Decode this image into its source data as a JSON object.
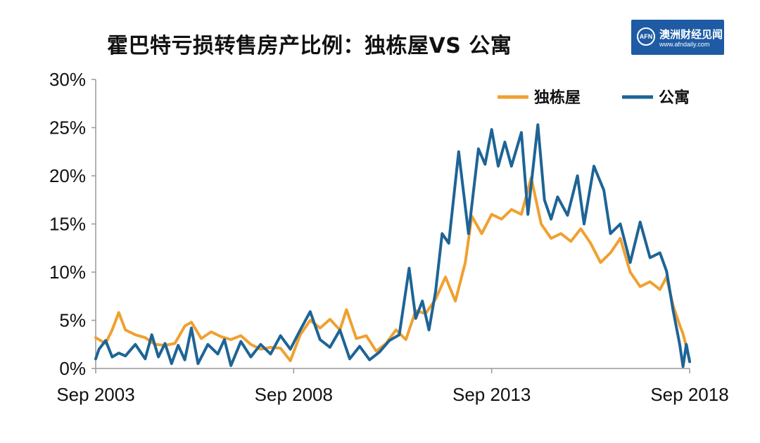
{
  "title": "霍巴特亏损转售房产比例：独栋屋VS 公寓",
  "logo": {
    "badge_text": "AFN",
    "name": "澳洲财经见闻",
    "url": "www.afndaily.com"
  },
  "chart_data": {
    "type": "line",
    "title": "霍巴特亏损转售房产比例：独栋屋VS 公寓",
    "xlabel": "",
    "ylabel": "",
    "x_range": [
      "2003-09",
      "2018-09"
    ],
    "ylim": [
      0,
      30
    ],
    "y_ticks": [
      "0%",
      "5%",
      "10%",
      "15%",
      "20%",
      "25%",
      "30%"
    ],
    "x_ticks": [
      "Sep 2003",
      "Sep 2008",
      "Sep 2013",
      "Sep 2018"
    ],
    "grid": false,
    "legend_position": "top-right",
    "series": [
      {
        "name": "独栋屋",
        "color": "#f0a030",
        "points": [
          [
            "2003-09",
            3.2
          ],
          [
            "2003-12",
            2.6
          ],
          [
            "2004-02",
            4.0
          ],
          [
            "2004-04",
            5.8
          ],
          [
            "2004-06",
            4.0
          ],
          [
            "2004-09",
            3.5
          ],
          [
            "2004-12",
            3.2
          ],
          [
            "2005-03",
            2.5
          ],
          [
            "2005-06",
            2.4
          ],
          [
            "2005-09",
            2.6
          ],
          [
            "2005-12",
            4.4
          ],
          [
            "2006-02",
            4.8
          ],
          [
            "2006-05",
            3.1
          ],
          [
            "2006-08",
            3.8
          ],
          [
            "2006-11",
            3.3
          ],
          [
            "2007-02",
            3.0
          ],
          [
            "2007-05",
            3.4
          ],
          [
            "2007-08",
            2.5
          ],
          [
            "2007-11",
            2.0
          ],
          [
            "2008-02",
            2.2
          ],
          [
            "2008-05",
            2.1
          ],
          [
            "2008-08",
            0.8
          ],
          [
            "2008-11",
            3.5
          ],
          [
            "2009-02",
            5.0
          ],
          [
            "2009-05",
            4.2
          ],
          [
            "2009-08",
            5.1
          ],
          [
            "2009-11",
            4.0
          ],
          [
            "2010-01",
            6.1
          ],
          [
            "2010-04",
            3.1
          ],
          [
            "2010-07",
            3.4
          ],
          [
            "2010-10",
            1.8
          ],
          [
            "2011-01",
            2.6
          ],
          [
            "2011-04",
            4.0
          ],
          [
            "2011-07",
            3.0
          ],
          [
            "2011-10",
            6.0
          ],
          [
            "2012-01",
            5.7
          ],
          [
            "2012-04",
            7.2
          ],
          [
            "2012-07",
            9.5
          ],
          [
            "2012-10",
            7.0
          ],
          [
            "2013-01",
            11.0
          ],
          [
            "2013-03",
            15.8
          ],
          [
            "2013-06",
            14.0
          ],
          [
            "2013-09",
            16.0
          ],
          [
            "2013-12",
            15.5
          ],
          [
            "2014-03",
            16.5
          ],
          [
            "2014-06",
            16.0
          ],
          [
            "2014-09",
            19.8
          ],
          [
            "2014-12",
            15.0
          ],
          [
            "2015-03",
            13.5
          ],
          [
            "2015-06",
            14.0
          ],
          [
            "2015-09",
            13.2
          ],
          [
            "2015-12",
            14.5
          ],
          [
            "2016-03",
            13.0
          ],
          [
            "2016-06",
            11.0
          ],
          [
            "2016-09",
            12.0
          ],
          [
            "2016-12",
            13.5
          ],
          [
            "2017-03",
            10.0
          ],
          [
            "2017-06",
            8.5
          ],
          [
            "2017-09",
            9.0
          ],
          [
            "2017-12",
            8.2
          ],
          [
            "2018-02",
            9.5
          ],
          [
            "2018-04",
            6.5
          ],
          [
            "2018-06",
            4.5
          ],
          [
            "2018-07",
            3.6
          ],
          [
            "2018-08",
            2.3
          ],
          [
            "2018-09",
            0.8
          ]
        ]
      },
      {
        "name": "公寓",
        "color": "#1e6496",
        "points": [
          [
            "2003-09",
            1.0
          ],
          [
            "2003-10",
            2.0
          ],
          [
            "2003-12",
            2.9
          ],
          [
            "2004-02",
            1.2
          ],
          [
            "2004-04",
            1.6
          ],
          [
            "2004-06",
            1.3
          ],
          [
            "2004-09",
            2.5
          ],
          [
            "2004-12",
            1.0
          ],
          [
            "2005-02",
            3.5
          ],
          [
            "2005-04",
            1.2
          ],
          [
            "2005-06",
            2.6
          ],
          [
            "2005-08",
            0.5
          ],
          [
            "2005-10",
            2.4
          ],
          [
            "2005-12",
            0.9
          ],
          [
            "2006-02",
            4.2
          ],
          [
            "2006-04",
            0.5
          ],
          [
            "2006-07",
            2.5
          ],
          [
            "2006-10",
            1.5
          ],
          [
            "2006-12",
            3.0
          ],
          [
            "2007-02",
            0.3
          ],
          [
            "2007-05",
            2.8
          ],
          [
            "2007-08",
            1.2
          ],
          [
            "2007-11",
            2.5
          ],
          [
            "2008-02",
            1.5
          ],
          [
            "2008-05",
            3.4
          ],
          [
            "2008-08",
            2.0
          ],
          [
            "2008-11",
            4.0
          ],
          [
            "2009-02",
            5.9
          ],
          [
            "2009-05",
            3.0
          ],
          [
            "2009-08",
            2.2
          ],
          [
            "2009-11",
            4.0
          ],
          [
            "2010-02",
            1.0
          ],
          [
            "2010-05",
            2.3
          ],
          [
            "2010-08",
            0.9
          ],
          [
            "2010-11",
            1.7
          ],
          [
            "2011-02",
            2.9
          ],
          [
            "2011-05",
            3.5
          ],
          [
            "2011-08",
            10.4
          ],
          [
            "2011-10",
            5.2
          ],
          [
            "2011-12",
            7.0
          ],
          [
            "2012-02",
            4.0
          ],
          [
            "2012-04",
            8.0
          ],
          [
            "2012-06",
            14.0
          ],
          [
            "2012-08",
            13.0
          ],
          [
            "2012-11",
            22.5
          ],
          [
            "2013-02",
            14.0
          ],
          [
            "2013-05",
            22.8
          ],
          [
            "2013-07",
            21.2
          ],
          [
            "2013-09",
            24.8
          ],
          [
            "2013-11",
            21.0
          ],
          [
            "2014-01",
            23.5
          ],
          [
            "2014-03",
            21.0
          ],
          [
            "2014-06",
            24.5
          ],
          [
            "2014-08",
            16.0
          ],
          [
            "2014-11",
            25.3
          ],
          [
            "2015-01",
            17.5
          ],
          [
            "2015-03",
            15.5
          ],
          [
            "2015-05",
            17.8
          ],
          [
            "2015-08",
            15.9
          ],
          [
            "2015-11",
            20.0
          ],
          [
            "2016-01",
            15.0
          ],
          [
            "2016-04",
            21.0
          ],
          [
            "2016-07",
            18.5
          ],
          [
            "2016-09",
            14.0
          ],
          [
            "2016-12",
            15.0
          ],
          [
            "2017-03",
            11.0
          ],
          [
            "2017-06",
            15.2
          ],
          [
            "2017-09",
            11.5
          ],
          [
            "2017-12",
            12.0
          ],
          [
            "2018-02",
            10.1
          ],
          [
            "2018-04",
            6.0
          ],
          [
            "2018-06",
            2.5
          ],
          [
            "2018-07",
            0.2
          ],
          [
            "2018-08",
            2.5
          ],
          [
            "2018-09",
            0.7
          ]
        ]
      }
    ]
  }
}
